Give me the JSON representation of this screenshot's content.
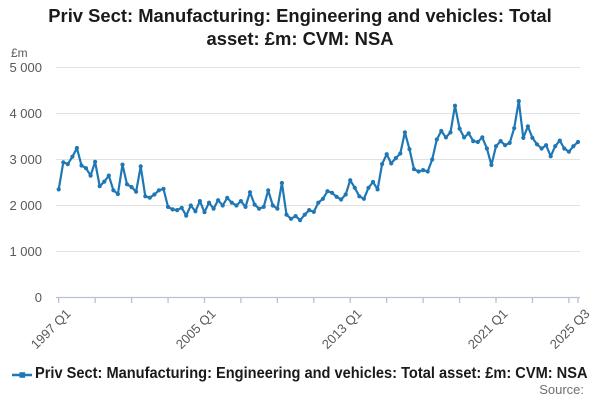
{
  "title_lines": [
    "Priv Sect: Manufacturing: Engineering and vehicles: Total",
    "asset: £m: CVM: NSA"
  ],
  "y_axis": {
    "unit_label": "£m",
    "tick_labels": [
      "5 000",
      "4 000",
      "3 000",
      "2 000",
      "1 000",
      "0"
    ],
    "tick_values": [
      5000,
      4000,
      3000,
      2000,
      1000,
      0
    ]
  },
  "x_axis": {
    "labeled_ticks": [
      {
        "label": "1997 Q1",
        "quarter_index": 0
      },
      {
        "label": "2005 Q1",
        "quarter_index": 32
      },
      {
        "label": "2013 Q1",
        "quarter_index": 64
      },
      {
        "label": "2021 Q1",
        "quarter_index": 96
      },
      {
        "label": "2025 Q3",
        "quarter_index": 114
      }
    ],
    "minor_tick_every_quarters": 8
  },
  "legend": {
    "label": "Priv Sect: Manufacturing: Engineering and vehicles: Total asset: £m: CVM: NSA"
  },
  "source_label": "Source:",
  "colors": {
    "line": "#1f77b4",
    "grid": "#e2e2e2",
    "axis": "#b7c2d8",
    "text": "#595959",
    "title": "#1a1a1a"
  },
  "chart_data": {
    "type": "line",
    "title": "Priv Sect: Manufacturing: Engineering and vehicles: Total asset: £m: CVM: NSA",
    "ylabel": "£m",
    "ylim": [
      0,
      5000
    ],
    "frequency": "quarterly",
    "start_period": "1997 Q1",
    "end_period": "2025 Q3",
    "values": [
      2350,
      2940,
      2900,
      3060,
      3250,
      2870,
      2810,
      2650,
      2950,
      2420,
      2520,
      2650,
      2330,
      2250,
      2890,
      2460,
      2400,
      2300,
      2850,
      2200,
      2170,
      2240,
      2330,
      2360,
      1970,
      1915,
      1900,
      1950,
      1780,
      2000,
      1875,
      2095,
      1855,
      2060,
      1930,
      2115,
      2000,
      2165,
      2060,
      2000,
      2095,
      1970,
      2290,
      2020,
      1930,
      1970,
      2330,
      2000,
      1930,
      2490,
      1800,
      1710,
      1770,
      1680,
      1800,
      1900,
      1860,
      2060,
      2145,
      2310,
      2275,
      2190,
      2130,
      2240,
      2550,
      2385,
      2200,
      2145,
      2385,
      2510,
      2350,
      2900,
      3115,
      2915,
      3030,
      3130,
      3590,
      3225,
      2790,
      2740,
      2770,
      2740,
      3000,
      3435,
      3620,
      3480,
      3590,
      4170,
      3670,
      3480,
      3570,
      3400,
      3380,
      3480,
      3240,
      2880,
      3290,
      3400,
      3310,
      3360,
      3680,
      4270,
      3470,
      3720,
      3470,
      3330,
      3240,
      3310,
      3070,
      3290,
      3410,
      3240,
      3170,
      3290,
      3380
    ]
  }
}
